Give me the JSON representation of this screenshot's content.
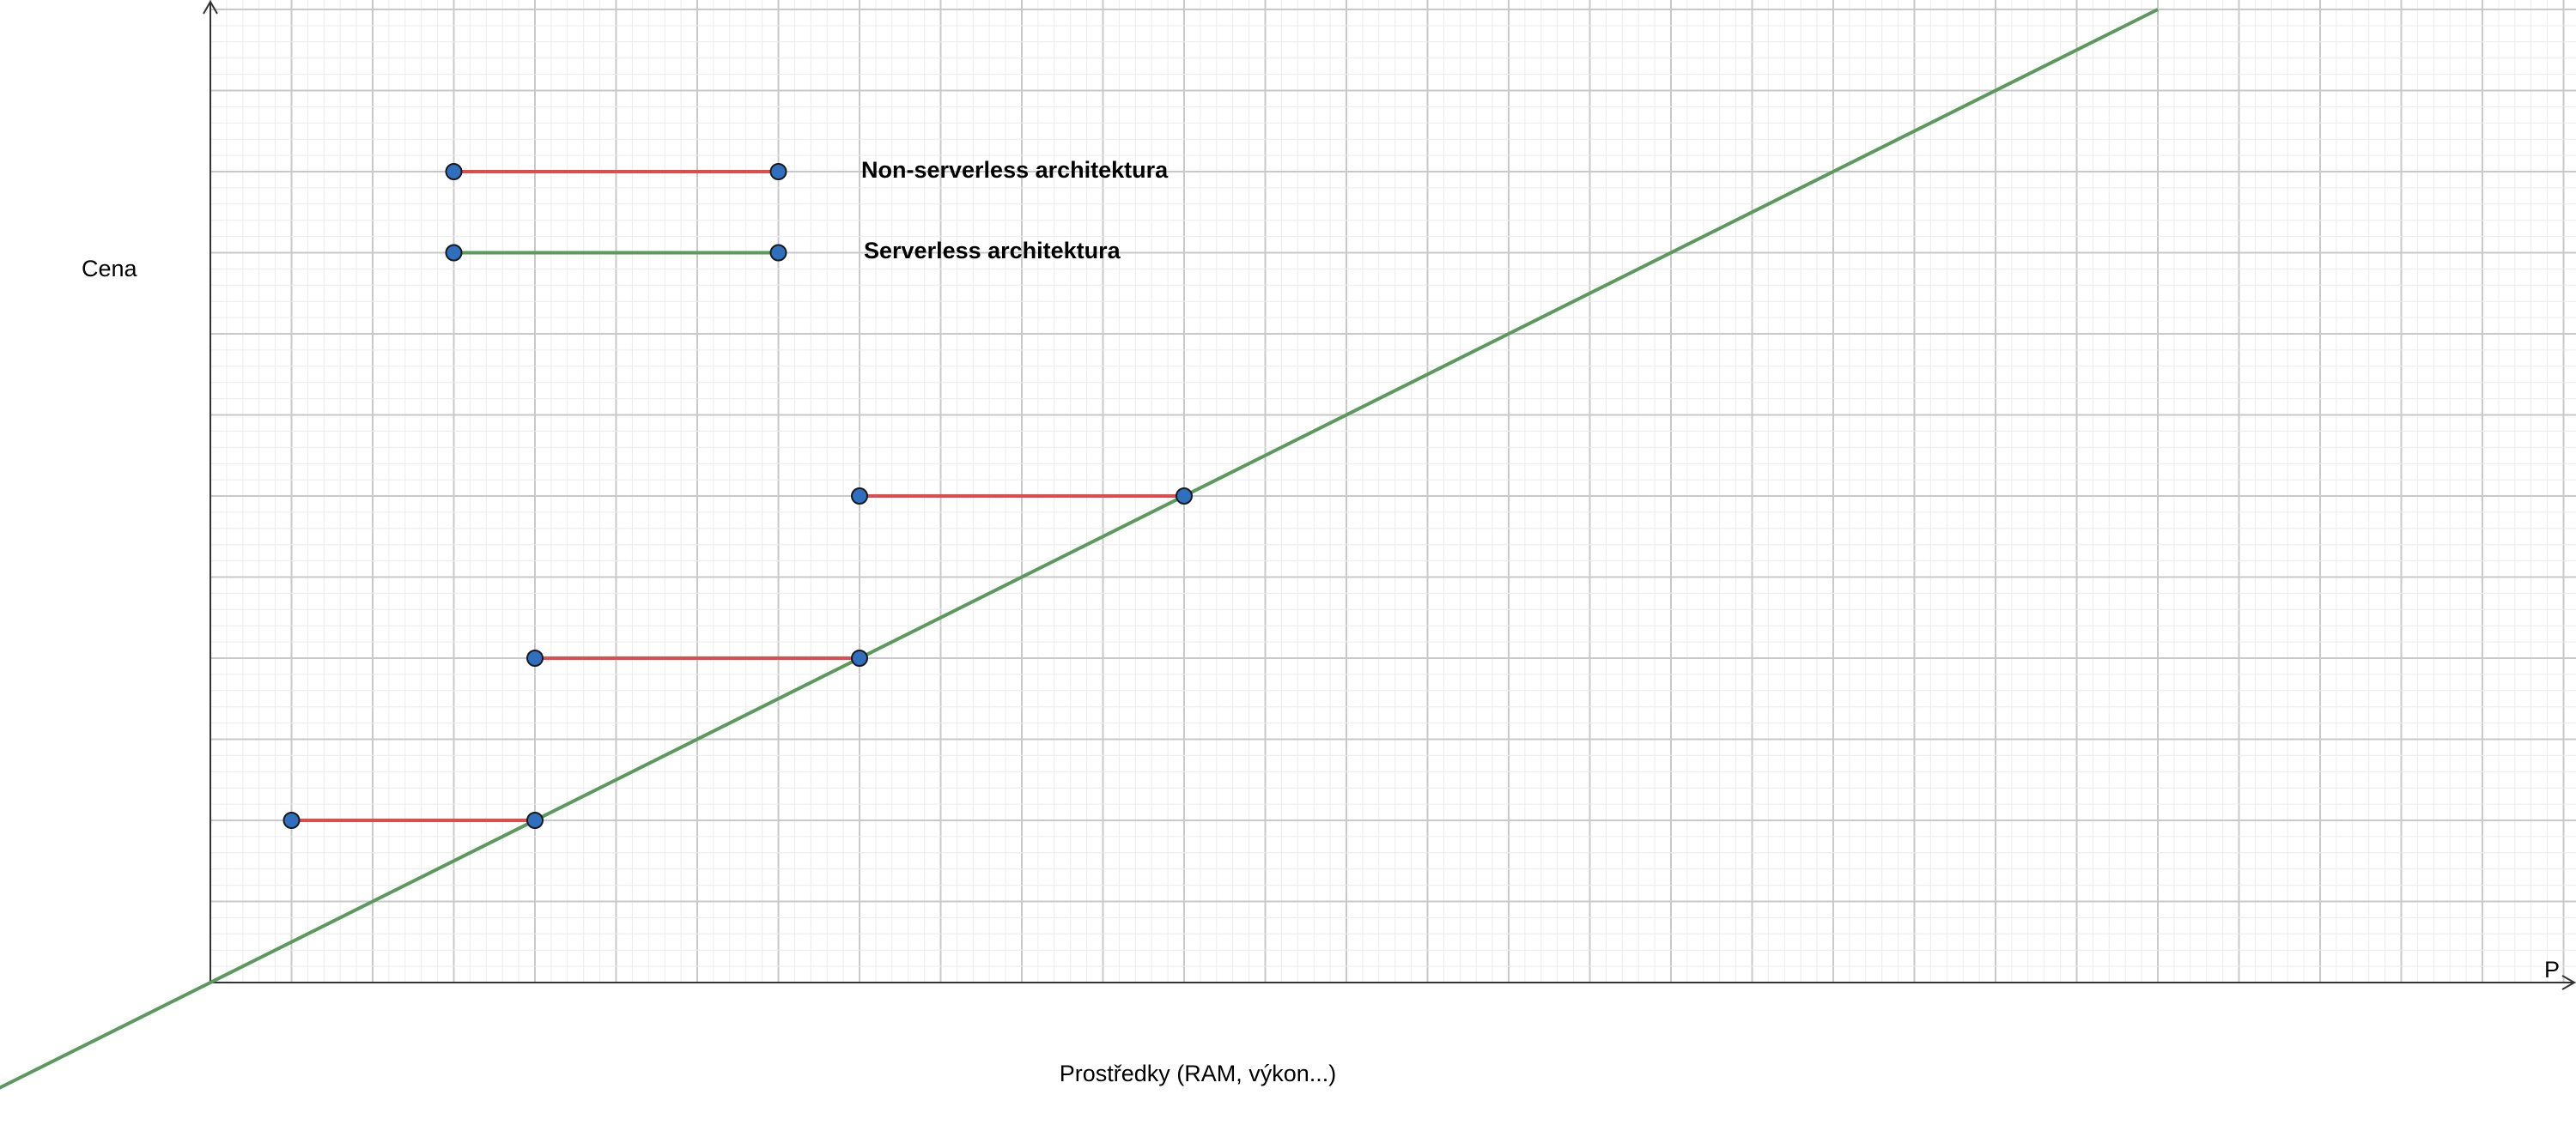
{
  "chart_data": {
    "type": "line",
    "xlabel": "Prostředky (RAM, výkon...)",
    "ylabel": "Cena",
    "x_axis_end_label": "P",
    "xlim": [
      -2.6,
      29.2
    ],
    "ylim": [
      -1.3,
      12.1
    ],
    "grid": true,
    "colors": {
      "serverless": "#5b9a5b",
      "nonserverless": "#e04b4b",
      "point": "#2f6fc0"
    },
    "legend": [
      {
        "name": "Non-serverless architektura",
        "color": "#e04b4b",
        "x": [
          3,
          7
        ],
        "y": 10
      },
      {
        "name": "Serverless architektura",
        "color": "#5b9a5b",
        "x": [
          3,
          7
        ],
        "y": 9
      }
    ],
    "series": [
      {
        "kind": "serverless",
        "x": [
          -2.6,
          24
        ],
        "y": [
          -1.3,
          12
        ]
      },
      {
        "kind": "nonserverless",
        "x": [
          1,
          4
        ],
        "y": [
          2,
          2
        ]
      },
      {
        "kind": "nonserverless",
        "x": [
          4,
          8
        ],
        "y": [
          4,
          4
        ]
      },
      {
        "kind": "nonserverless",
        "x": [
          8,
          12
        ],
        "y": [
          6,
          6
        ]
      }
    ]
  }
}
